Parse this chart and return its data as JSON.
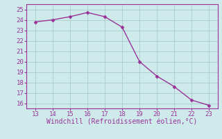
{
  "x": [
    13,
    14,
    15,
    16,
    17,
    18,
    19,
    20,
    21,
    22,
    23
  ],
  "y": [
    23.8,
    24.0,
    24.3,
    24.7,
    24.3,
    23.3,
    20.0,
    18.6,
    17.6,
    16.3,
    15.8
  ],
  "xlim": [
    12.5,
    23.5
  ],
  "ylim": [
    15.5,
    25.5
  ],
  "xticks": [
    13,
    14,
    15,
    16,
    17,
    18,
    19,
    20,
    21,
    22,
    23
  ],
  "yticks": [
    16,
    17,
    18,
    19,
    20,
    21,
    22,
    23,
    24,
    25
  ],
  "xlabel": "Windchill (Refroidissement éolien,°C)",
  "line_color": "#993399",
  "marker": "D",
  "marker_size": 2.5,
  "bg_color": "#ceeaea",
  "grid_color": "#aacccc",
  "tick_color": "#993399",
  "label_color": "#993399",
  "spine_color": "#993399",
  "tick_fontsize": 6.5,
  "label_fontsize": 7
}
